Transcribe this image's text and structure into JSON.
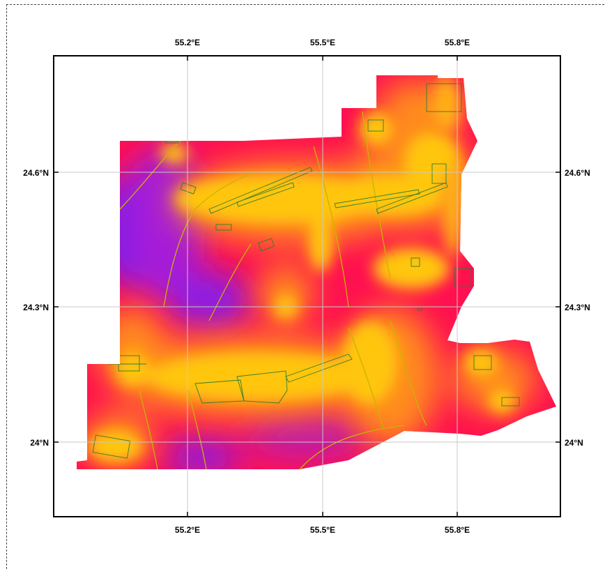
{
  "map": {
    "lon_ticks": [
      "55.2°E",
      "55.5°E",
      "55.8°E"
    ],
    "lat_ticks": [
      "24.6°N",
      "24.3°N",
      "24°N"
    ],
    "lon_tick_values": [
      55.2,
      55.5,
      55.8
    ],
    "lat_tick_values": [
      24.6,
      24.3,
      24.0
    ],
    "extent": {
      "lon_min": 54.915,
      "lon_max": 56.03,
      "lat_min": 23.835,
      "lat_max": 24.855
    },
    "colors": {
      "blue": "#4b1cff",
      "violet": "#a61cd8",
      "magenta": "#e0147c",
      "crimson": "#ff1050",
      "red_orange": "#ff4a30",
      "orange": "#ff8c1a",
      "amber": "#ffb018",
      "gold": "#ffc60f",
      "boundary": "#2e7d32",
      "contour": "#c8b400",
      "grid": "#c8c8c8",
      "frame": "#000000"
    }
  }
}
